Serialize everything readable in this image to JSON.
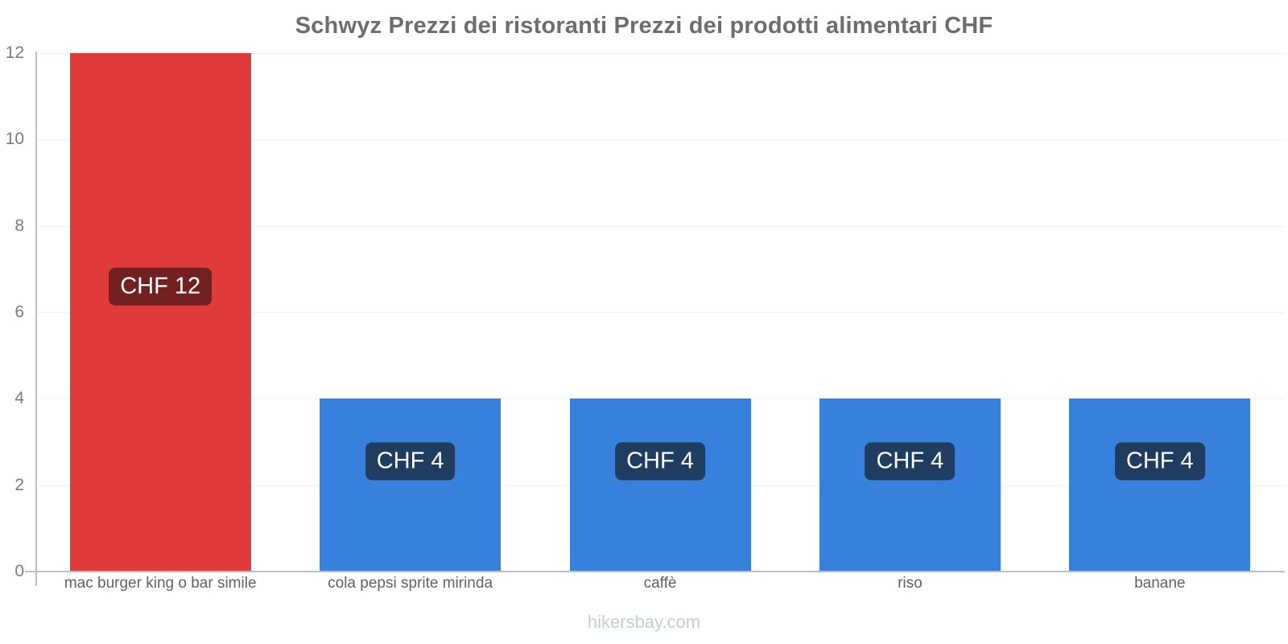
{
  "header": {
    "title": "Schwyz Prezzi dei ristoranti Prezzi dei prodotti alimentari CHF"
  },
  "chart_data": {
    "type": "bar",
    "title": "Schwyz Prezzi dei ristoranti Prezzi dei prodotti alimentari CHF",
    "currency": "CHF",
    "categories": [
      "mac burger king o bar simile",
      "cola pepsi sprite mirinda",
      "caffè",
      "riso",
      "banane"
    ],
    "values": [
      12,
      4,
      4,
      4,
      4
    ],
    "value_labels": [
      "CHF 12",
      "CHF 4",
      "CHF 4",
      "CHF 4",
      "CHF 4"
    ],
    "bar_colors": [
      "#e13a3a",
      "#3781dd",
      "#3781dd",
      "#3781dd",
      "#3781dd"
    ],
    "value_label_bg": [
      "#722020",
      "#1e3d61",
      "#1e3d61",
      "#1e3d61",
      "#1e3d61"
    ],
    "xlabel": "",
    "ylabel": "",
    "ylim": [
      0,
      12
    ],
    "yticks": [
      0,
      2,
      4,
      6,
      8,
      10,
      12
    ],
    "grid": "horizontal-faint",
    "legend": "none"
  },
  "footer": {
    "text": "hikersbay.com"
  },
  "colors": {
    "background": "#ffffff",
    "title_text": "#6d6d6d",
    "axis_line": "#bfbfbf",
    "gridline": "#f2f2f2",
    "y_tick_text": "#7a7b7f",
    "x_label_text": "#616161",
    "value_label_text": "#ffffff",
    "watermark_text": "#c8ccd4"
  }
}
